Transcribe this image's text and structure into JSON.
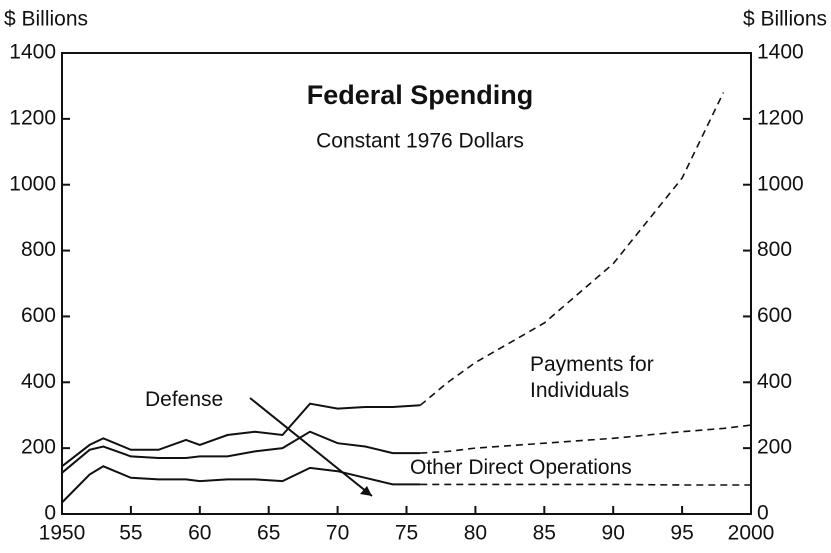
{
  "chart_data": {
    "type": "line",
    "title": "Federal Spending",
    "subtitle": "Constant 1976 Dollars",
    "ylabel": "$ Billions",
    "y2label": "$ Billions",
    "dashed_from": 1976,
    "x": [
      1950,
      1952,
      1953,
      1955,
      1957,
      1959,
      1960,
      1962,
      1964,
      1966,
      1968,
      1970,
      1972,
      1974,
      1976,
      1978,
      1980,
      1985,
      1990,
      1995,
      1998,
      2000
    ],
    "series": [
      {
        "name": "Payments for Individuals",
        "color": "#111111",
        "values": [
          145,
          210,
          230,
          195,
          195,
          225,
          210,
          240,
          250,
          240,
          335,
          320,
          325,
          325,
          330,
          400,
          460,
          580,
          760,
          1020,
          1280,
          null
        ]
      },
      {
        "name": "Other Direct Operations",
        "color": "#111111",
        "values": [
          125,
          195,
          205,
          175,
          170,
          170,
          175,
          175,
          190,
          200,
          250,
          215,
          205,
          185,
          185,
          190,
          200,
          215,
          230,
          250,
          260,
          270
        ]
      },
      {
        "name": "Defense",
        "color": "#111111",
        "values": [
          35,
          120,
          145,
          110,
          105,
          105,
          100,
          105,
          105,
          100,
          140,
          130,
          110,
          90,
          90,
          90,
          90,
          90,
          90,
          88,
          88,
          88
        ]
      }
    ],
    "xlim": [
      1950,
      2000
    ],
    "xticks": [
      {
        "value": 1950,
        "label": "1950"
      },
      {
        "value": 1955,
        "label": "55"
      },
      {
        "value": 1960,
        "label": "60"
      },
      {
        "value": 1965,
        "label": "65"
      },
      {
        "value": 1970,
        "label": "70"
      },
      {
        "value": 1975,
        "label": "75"
      },
      {
        "value": 1980,
        "label": "80"
      },
      {
        "value": 1985,
        "label": "85"
      },
      {
        "value": 1990,
        "label": "90"
      },
      {
        "value": 1995,
        "label": "95"
      },
      {
        "value": 2000,
        "label": "2000"
      }
    ],
    "ylim": [
      0,
      1400
    ],
    "yticks": [
      0,
      200,
      400,
      600,
      800,
      1000,
      1200,
      1400
    ],
    "y2lim": [
      0,
      1400
    ],
    "y2ticks": [
      0,
      200,
      400,
      600,
      800,
      1000,
      1200,
      1400
    ]
  }
}
